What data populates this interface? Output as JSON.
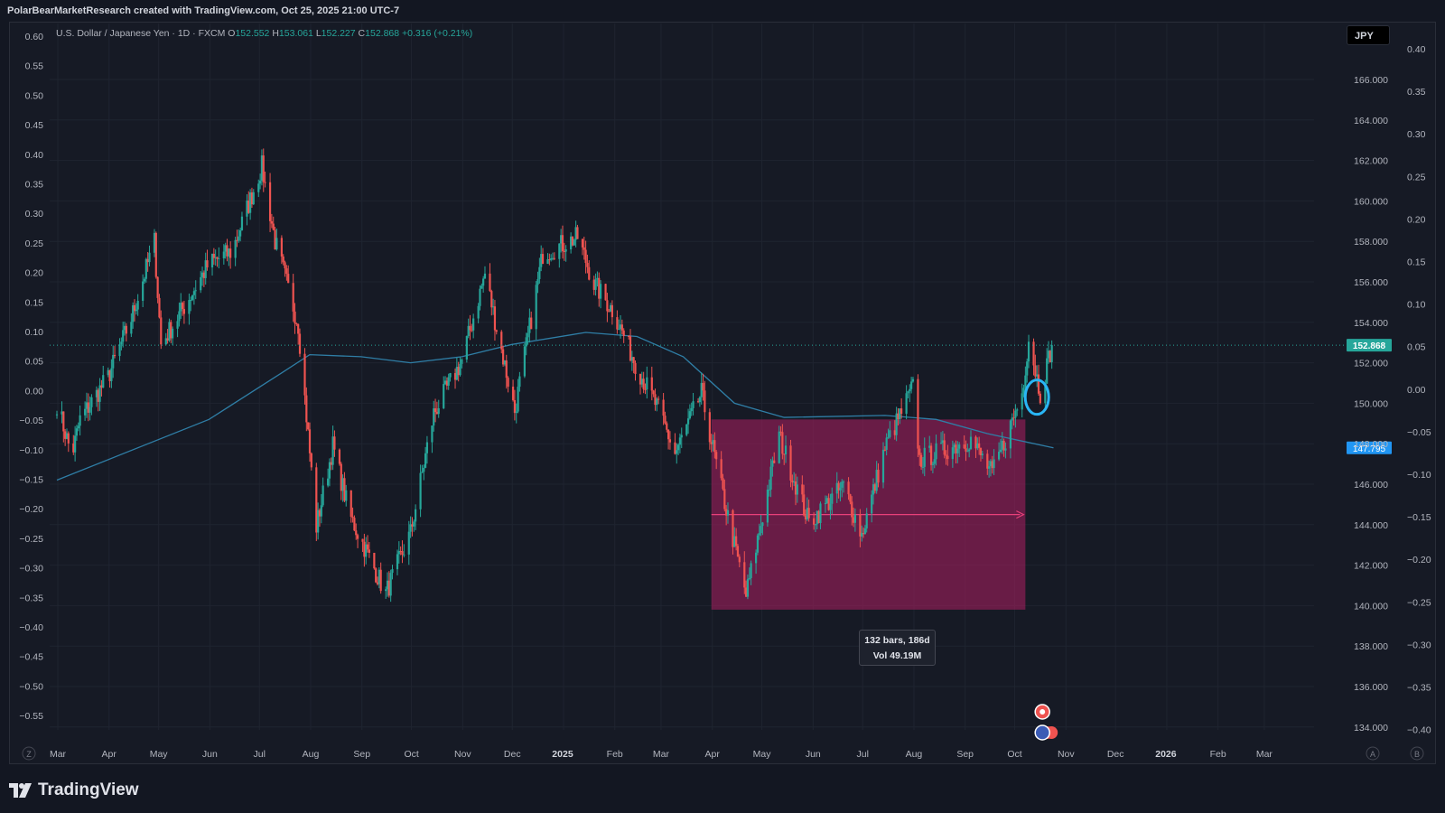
{
  "header": {
    "text": "PolarBearMarketResearch created with TradingView.com, Oct 25, 2025 21:00 UTC-7"
  },
  "legend": {
    "symbol": "U.S. Dollar / Japanese Yen · 1D · FXCM",
    "o_label": "O",
    "o_value": "152.552",
    "h_label": "H",
    "h_value": "153.061",
    "l_label": "L",
    "l_value": "152.227",
    "c_label": "C",
    "c_value": "152.868",
    "change": "+0.316 (+0.21%)"
  },
  "currency_button": "JPY",
  "left_axis": [
    "0.60",
    "0.55",
    "0.50",
    "0.45",
    "0.40",
    "0.35",
    "0.30",
    "0.25",
    "0.20",
    "0.15",
    "0.10",
    "0.05",
    "0.00",
    "−0.05",
    "−0.10",
    "−0.15",
    "−0.20",
    "−0.25",
    "−0.30",
    "−0.35",
    "−0.40",
    "−0.45",
    "−0.50",
    "−0.55"
  ],
  "price_axis": [
    "166.000",
    "164.000",
    "162.000",
    "160.000",
    "158.000",
    "156.000",
    "154.000",
    "152.000",
    "150.000",
    "148.000",
    "146.000",
    "144.000",
    "142.000",
    "140.000",
    "138.000",
    "136.000",
    "134.000"
  ],
  "right_axis": [
    "0.40",
    "0.35",
    "0.30",
    "0.25",
    "0.20",
    "0.15",
    "0.10",
    "0.05",
    "0.00",
    "−0.05",
    "−0.10",
    "−0.15",
    "−0.20",
    "−0.25",
    "−0.30",
    "−0.35",
    "−0.40"
  ],
  "time_axis": [
    "Mar",
    "Apr",
    "May",
    "Jun",
    "Jul",
    "Aug",
    "Sep",
    "Oct",
    "Nov",
    "Dec",
    "2025",
    "Feb",
    "Mar",
    "Apr",
    "May",
    "Jun",
    "Jul",
    "Aug",
    "Sep",
    "Oct",
    "Nov",
    "Dec",
    "2026",
    "Feb",
    "Mar"
  ],
  "corner_labels": {
    "left": "Z",
    "a": "A",
    "b": "B"
  },
  "last_price_badge": "152.868",
  "ma_badge": "147.795",
  "measure_tooltip": {
    "line1": "132 bars, 186d",
    "line2": "Vol 49.19M"
  },
  "brand": "TradingView",
  "colors": {
    "up": "#26a69a",
    "down": "#ef5350",
    "ma": "#2f7ea6",
    "range_box": "#9c1f5b",
    "badge_last": "#26a69a",
    "badge_ma": "#2196f3",
    "circle": "#29b6f6"
  },
  "chart_data": {
    "type": "candlestick",
    "symbol": "USDJPY",
    "interval": "1D",
    "x_range": [
      "2024-03",
      "2026-03"
    ],
    "y_range": [
      134,
      167
    ],
    "anchors": [
      [
        "2024-03-01",
        150.0
      ],
      [
        "2024-03-10",
        147.4
      ],
      [
        "2024-03-15",
        149.2
      ],
      [
        "2024-04-01",
        151.3
      ],
      [
        "2024-04-15",
        154.2
      ],
      [
        "2024-04-29",
        158.0
      ],
      [
        "2024-05-03",
        152.9
      ],
      [
        "2024-05-15",
        154.5
      ],
      [
        "2024-06-01",
        156.9
      ],
      [
        "2024-06-15",
        157.5
      ],
      [
        "2024-07-03",
        161.7
      ],
      [
        "2024-07-11",
        158.0
      ],
      [
        "2024-07-25",
        153.9
      ],
      [
        "2024-08-05",
        143.9
      ],
      [
        "2024-08-15",
        147.9
      ],
      [
        "2024-08-25",
        144.5
      ],
      [
        "2024-09-16",
        140.6
      ],
      [
        "2024-10-01",
        143.6
      ],
      [
        "2024-10-15",
        149.5
      ],
      [
        "2024-11-01",
        152.1
      ],
      [
        "2024-11-15",
        156.4
      ],
      [
        "2024-12-03",
        149.6
      ],
      [
        "2024-12-20",
        157.4
      ],
      [
        "2025-01-10",
        158.2
      ],
      [
        "2025-01-20",
        155.9
      ],
      [
        "2025-02-01",
        154.5
      ],
      [
        "2025-02-15",
        151.8
      ],
      [
        "2025-03-01",
        149.5
      ],
      [
        "2025-03-10",
        147.5
      ],
      [
        "2025-03-26",
        150.5
      ],
      [
        "2025-04-07",
        145.8
      ],
      [
        "2025-04-22",
        140.5
      ],
      [
        "2025-05-12",
        148.4
      ],
      [
        "2025-05-30",
        144.1
      ],
      [
        "2025-06-20",
        145.9
      ],
      [
        "2025-07-01",
        143.5
      ],
      [
        "2025-07-15",
        147.8
      ],
      [
        "2025-08-01",
        150.8
      ],
      [
        "2025-08-05",
        147.2
      ],
      [
        "2025-08-20",
        147.7
      ],
      [
        "2025-09-05",
        148.2
      ],
      [
        "2025-09-18",
        146.5
      ],
      [
        "2025-09-29",
        148.9
      ],
      [
        "2025-10-06",
        150.5
      ],
      [
        "2025-10-10",
        153.2
      ],
      [
        "2025-10-17",
        150.5
      ],
      [
        "2025-10-24",
        152.868
      ]
    ],
    "moving_average": [
      [
        "2024-03-01",
        146.2
      ],
      [
        "2024-06-01",
        149.2
      ],
      [
        "2024-07-15",
        151.5
      ],
      [
        "2024-08-01",
        152.4
      ],
      [
        "2024-09-01",
        152.3
      ],
      [
        "2024-10-01",
        152.0
      ],
      [
        "2024-11-01",
        152.3
      ],
      [
        "2024-12-01",
        152.9
      ],
      [
        "2025-01-15",
        153.5
      ],
      [
        "2025-02-15",
        153.3
      ],
      [
        "2025-03-15",
        152.3
      ],
      [
        "2025-04-15",
        150.0
      ],
      [
        "2025-05-15",
        149.3
      ],
      [
        "2025-07-15",
        149.4
      ],
      [
        "2025-08-15",
        149.2
      ],
      [
        "2025-09-15",
        148.5
      ],
      [
        "2025-10-25",
        147.795
      ]
    ],
    "last_price": 152.868,
    "ma_last": 147.795,
    "date_range": {
      "from": "2025-04-01",
      "to": "2025-10-08",
      "high": 149.2,
      "low": 139.8,
      "bars": 132,
      "days": 186,
      "volume": "49.19M"
    }
  }
}
